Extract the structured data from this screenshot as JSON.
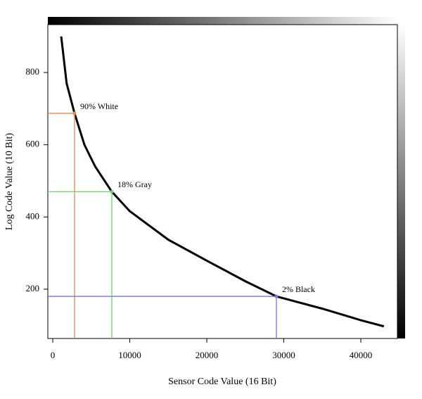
{
  "chart_data": {
    "type": "line",
    "xlabel": "Sensor Code Value (16 Bit)",
    "ylabel": "Log Code Value (10 Bit)",
    "xlim": [
      -640,
      44750
    ],
    "ylim": [
      63.4,
      932.7
    ],
    "xticks": [
      0,
      10000,
      20000,
      30000,
      40000
    ],
    "yticks": [
      200,
      400,
      600,
      800
    ],
    "series": [
      {
        "name": null,
        "color": "#000000",
        "x": [
          1100,
          1800,
          2830,
          4110,
          5500,
          7670,
          10000,
          15000,
          20000,
          25000,
          29040,
          35000,
          40000,
          43000
        ],
        "y": [
          900,
          770,
          687,
          600,
          540,
          470,
          416,
          337,
          279,
          222,
          180,
          146,
          114,
          97
        ]
      }
    ],
    "markers": [
      {
        "name": "90% White",
        "x": 2830,
        "y": 687,
        "color": "#e8864e"
      },
      {
        "name": "18% Gray",
        "x": 7670,
        "y": 470,
        "color": "#6ad46a"
      },
      {
        "name": "2% Black",
        "x": 29040,
        "y": 180,
        "color": "#7474dc"
      }
    ]
  }
}
